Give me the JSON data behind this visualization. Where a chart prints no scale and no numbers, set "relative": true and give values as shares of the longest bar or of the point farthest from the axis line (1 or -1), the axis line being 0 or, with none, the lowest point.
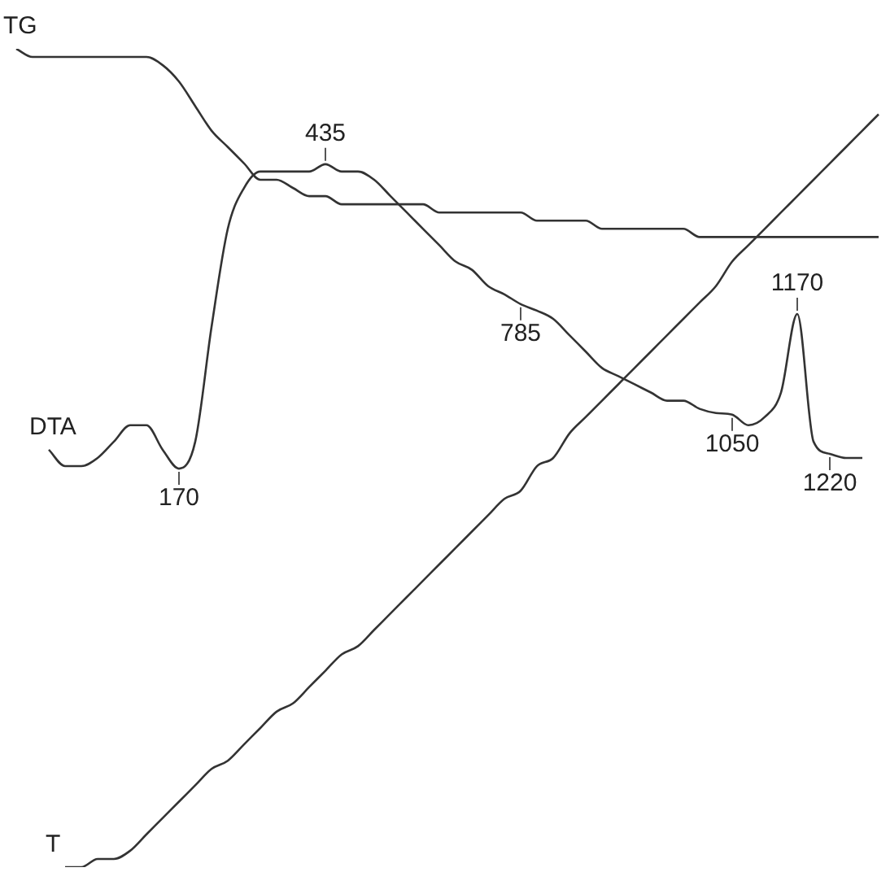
{
  "chart_data": {
    "type": "line",
    "relative": true,
    "legend": false,
    "marker": "none",
    "line_style": "solid",
    "categories": [
      null,
      null,
      null,
      null,
      null,
      null,
      null,
      null,
      null,
      null,
      null,
      null,
      null,
      null,
      null,
      null,
      null,
      null,
      null,
      null,
      null,
      null,
      null,
      null,
      null,
      null,
      null,
      null,
      null,
      null,
      null,
      null,
      null,
      null,
      null,
      null,
      null,
      null,
      null,
      null,
      null,
      null,
      null,
      null,
      null,
      null,
      null,
      null,
      null,
      null,
      null,
      null,
      null,
      null
    ],
    "series": [
      {
        "name": "TG",
        "color": "#333333",
        "values": [
          1.0,
          0.99,
          0.99,
          0.99,
          0.99,
          0.99,
          0.99,
          0.99,
          0.99,
          0.98,
          0.96,
          0.93,
          0.9,
          0.88,
          0.86,
          0.84,
          0.84,
          0.83,
          0.82,
          0.82,
          0.81,
          0.81,
          0.81,
          0.81,
          0.81,
          0.81,
          0.8,
          0.8,
          0.8,
          0.8,
          0.8,
          0.8,
          0.79,
          0.79,
          0.79,
          0.79,
          0.78,
          0.78,
          0.78,
          0.78,
          0.78,
          0.78,
          0.77,
          0.77,
          0.77,
          0.77,
          0.77,
          0.77,
          0.77,
          0.77,
          0.77,
          0.77,
          0.77,
          0.77
        ]
      },
      {
        "name": "DTA",
        "color": "#333333",
        "values": [
          null,
          null,
          0.51,
          0.49,
          0.49,
          0.5,
          0.52,
          0.54,
          0.54,
          0.51,
          0.487,
          0.52,
          0.66,
          0.78,
          0.83,
          0.85,
          0.85,
          0.85,
          0.85,
          0.859,
          0.85,
          0.85,
          0.84,
          0.82,
          0.8,
          0.78,
          0.76,
          0.74,
          0.73,
          0.71,
          0.7,
          0.688,
          0.68,
          0.67,
          0.65,
          0.63,
          0.61,
          0.6,
          0.59,
          0.58,
          0.57,
          0.57,
          0.56,
          0.555,
          0.553,
          0.54,
          0.55,
          0.58,
          0.676,
          0.52,
          0.505,
          0.5,
          0.5,
          null
        ]
      },
      {
        "name": "T",
        "color": "#333333",
        "values": [
          null,
          null,
          null,
          0.0,
          0.0,
          0.01,
          0.01,
          0.02,
          0.04,
          0.06,
          0.08,
          0.1,
          0.12,
          0.13,
          0.15,
          0.17,
          0.19,
          0.2,
          0.22,
          0.24,
          0.26,
          0.27,
          0.29,
          0.31,
          0.33,
          0.35,
          0.37,
          0.39,
          0.41,
          0.43,
          0.45,
          0.46,
          0.49,
          0.5,
          0.53,
          0.55,
          0.57,
          0.59,
          0.61,
          0.63,
          0.65,
          0.67,
          0.69,
          0.71,
          0.74,
          0.76,
          0.78,
          0.8,
          0.82,
          0.84,
          0.86,
          0.88,
          0.9,
          0.92
        ]
      }
    ],
    "annotations": [
      {
        "text": "170",
        "y": 0.487
      },
      {
        "text": "435",
        "y": 0.859
      },
      {
        "text": "785",
        "y": 0.688
      },
      {
        "text": "1050",
        "y": 0.553
      },
      {
        "text": "1170",
        "y": 0.676
      },
      {
        "text": "1220",
        "y": 0.505
      }
    ]
  }
}
